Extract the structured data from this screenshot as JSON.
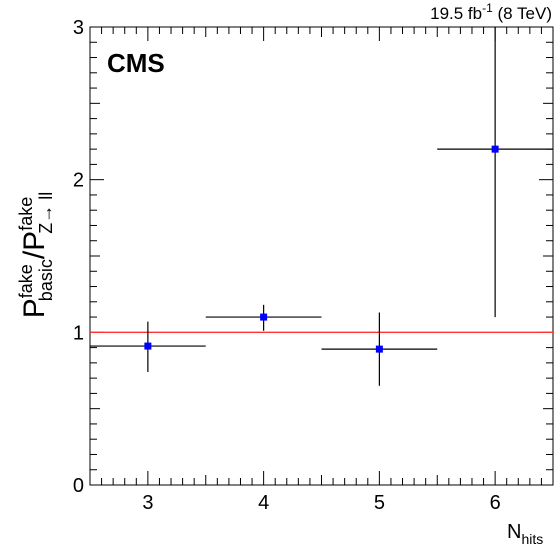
{
  "chart_data": {
    "type": "scatter",
    "experiment_label": "CMS",
    "lumi_label": {
      "prefix": "19.5 fb",
      "superscript": "-1",
      "suffix": " (8 TeV)"
    },
    "xlabel": {
      "main": "N",
      "subscript": "hits"
    },
    "ylabel": {
      "p1": "P",
      "p1_super": "fake",
      "p1_sub": "basic",
      "slash": "/",
      "p2": "P",
      "p2_super": "fake",
      "p2_sub": "Z→ ll"
    },
    "xlim": [
      2.5,
      6.5
    ],
    "ylim": [
      0,
      3
    ],
    "x_ticks": [
      3,
      4,
      5,
      6
    ],
    "y_ticks": [
      0,
      1,
      2,
      3
    ],
    "reference_line": {
      "y": 1.0,
      "color": "#ff3333"
    },
    "marker_color": "#0000ff",
    "points": [
      {
        "x": 3,
        "y": 0.91,
        "xerr": 0.5,
        "yerr_low": 0.17,
        "yerr_high": 0.16
      },
      {
        "x": 4,
        "y": 1.1,
        "xerr": 0.5,
        "yerr_low": 0.09,
        "yerr_high": 0.08
      },
      {
        "x": 5,
        "y": 0.89,
        "xerr": 0.5,
        "yerr_low": 0.24,
        "yerr_high": 0.24
      },
      {
        "x": 6,
        "y": 2.2,
        "xerr": 0.5,
        "yerr_low": 1.1,
        "yerr_high": 0.8
      }
    ]
  }
}
